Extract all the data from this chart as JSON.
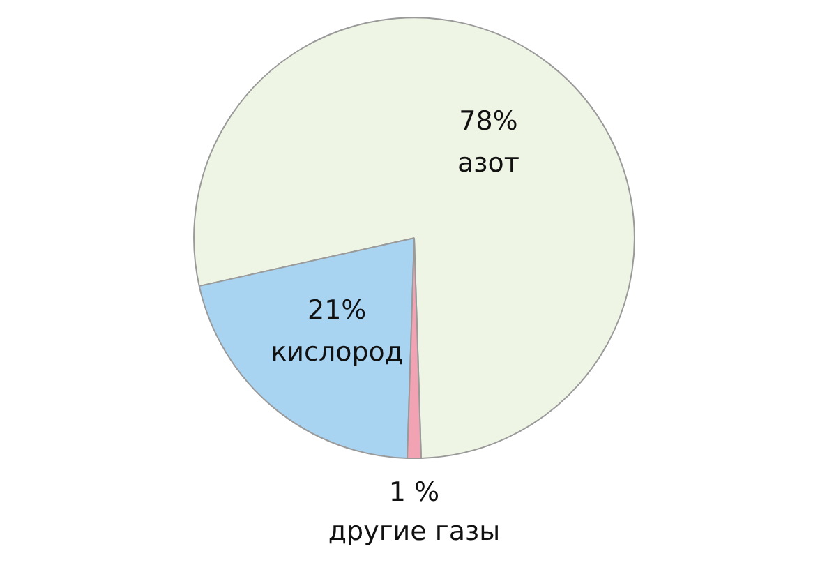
{
  "chart_data": {
    "type": "pie",
    "categories": [
      "азот",
      "кислород",
      "другие газы"
    ],
    "values": [
      78,
      21,
      1
    ],
    "colors": [
      "#eef5e4",
      "#a8d4f2",
      "#f2a3b3"
    ],
    "value_labels": [
      "78%",
      "21%",
      "1 %"
    ]
  }
}
